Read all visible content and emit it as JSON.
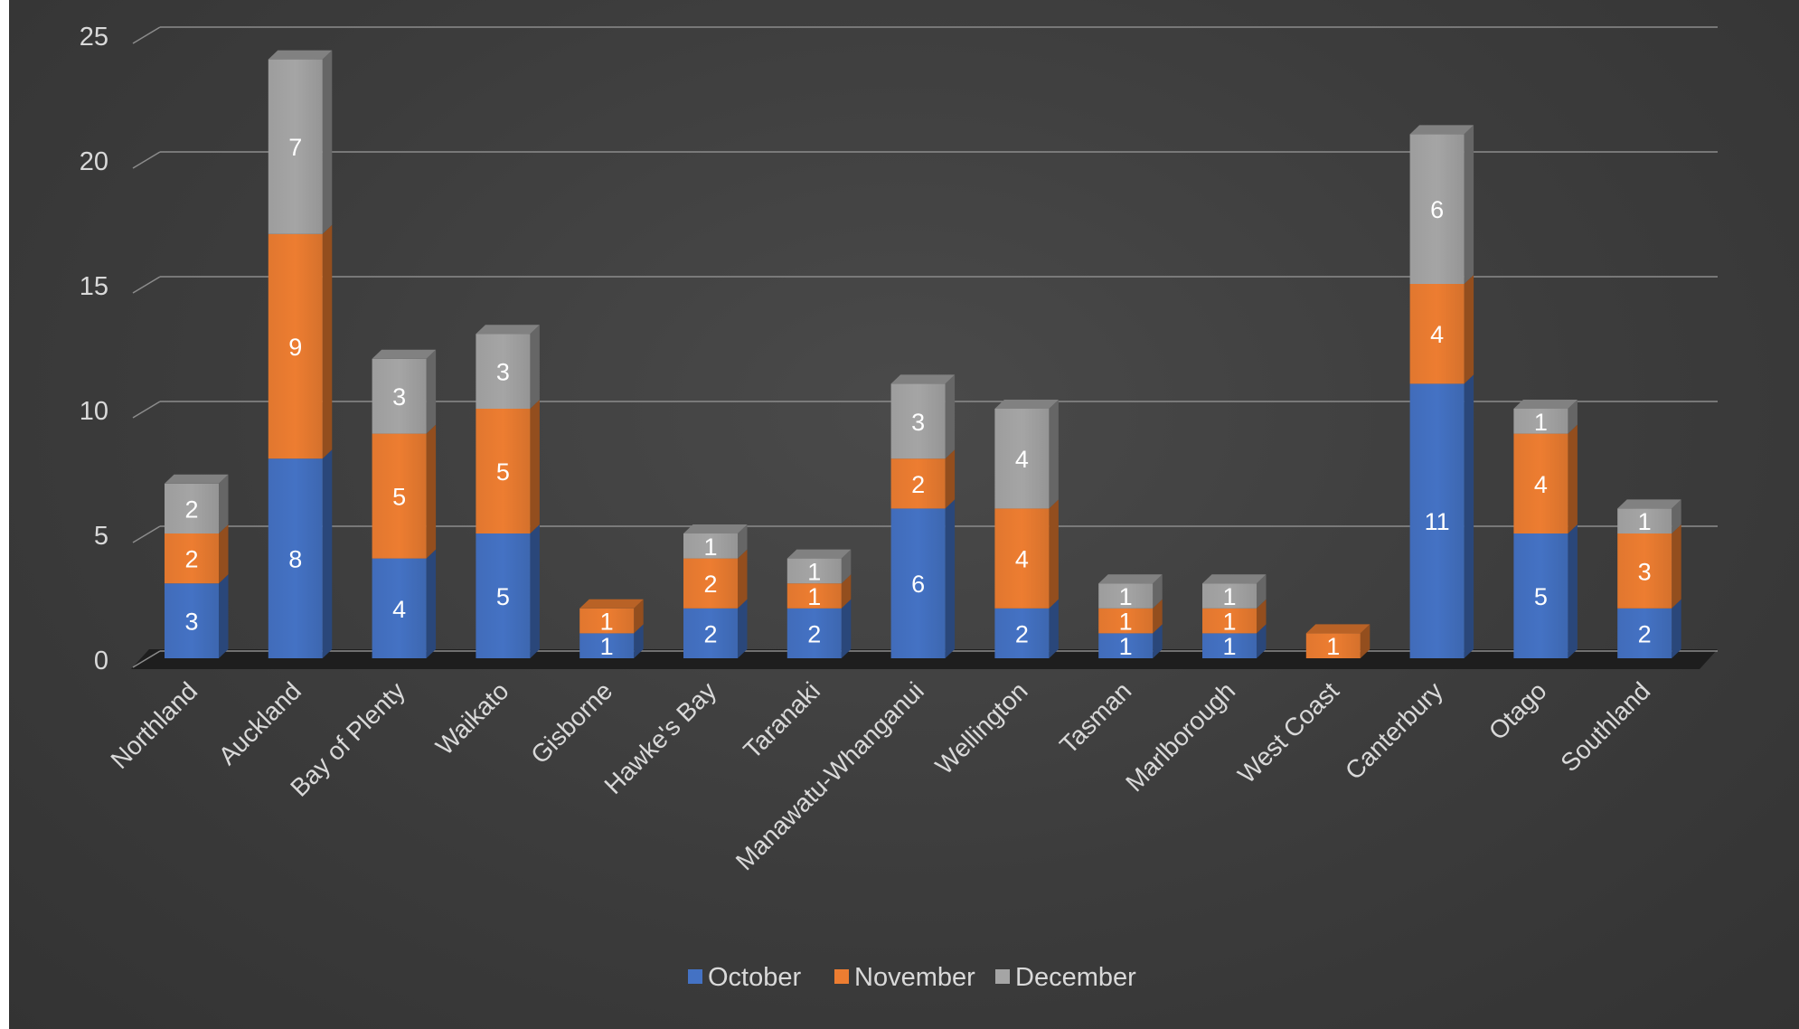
{
  "chart_data": {
    "type": "bar",
    "stacked": true,
    "three_d": true,
    "categories": [
      "Northland",
      "Auckland",
      "Bay of Plenty",
      "Waikato",
      "Gisborne",
      "Hawke's Bay",
      "Taranaki",
      "Manawatu-Whanganui",
      "Wellington",
      "Tasman",
      "Marlborough",
      "West Coast",
      "Canterbury",
      "Otago",
      "Southland"
    ],
    "series": [
      {
        "name": "October",
        "color": "#4472c4",
        "values": [
          3,
          8,
          4,
          5,
          1,
          2,
          2,
          6,
          2,
          1,
          1,
          0,
          11,
          5,
          2
        ]
      },
      {
        "name": "November",
        "color": "#ed7d31",
        "values": [
          2,
          9,
          5,
          5,
          1,
          2,
          1,
          2,
          4,
          1,
          1,
          1,
          4,
          4,
          3
        ]
      },
      {
        "name": "December",
        "color": "#a5a5a5",
        "values": [
          2,
          7,
          3,
          3,
          0,
          1,
          1,
          3,
          4,
          1,
          1,
          0,
          6,
          1,
          1
        ]
      }
    ],
    "ylim": [
      0,
      25
    ],
    "yticks": [
      0,
      5,
      10,
      15,
      20,
      25
    ],
    "grid": true,
    "legend": "bottom",
    "data_labels": true,
    "background": "#404040"
  }
}
